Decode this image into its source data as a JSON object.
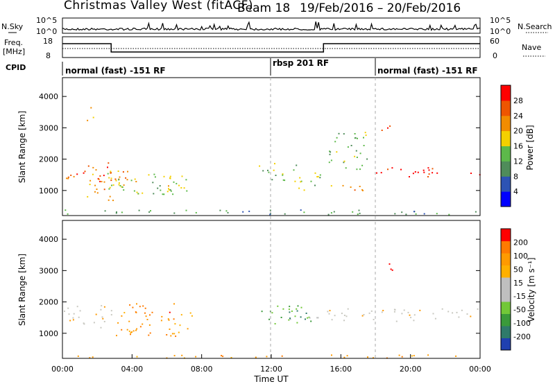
{
  "header": {
    "station": "Christmas Valley West (fitACF)",
    "beam": "Beam 18",
    "date_range": "19/Feb/2016 – 20/Feb/2016"
  },
  "colors": {
    "power_scale": [
      "#0000ff",
      "#2d53b4",
      "#4f8c5a",
      "#5db94a",
      "#f4d000",
      "#f28c00",
      "#ee5500",
      "#ff0000"
    ],
    "velocity_scale": [
      "#ff0000",
      "#ff7a00",
      "#ff9a00",
      "#ffb000",
      "#bfbfbf",
      "#bfbfbf",
      "#72c838",
      "#3a9a3a",
      "#2f7a6a",
      "#2040b0"
    ],
    "ground_scatter": "#c8c8c0"
  },
  "chart_data": [
    {
      "type": "line",
      "panel": "noise",
      "left_label": "N.Sky",
      "right_label": "N.Search",
      "left_ticks": [
        "10^5",
        "10^0"
      ],
      "right_ticks": [
        "10^5",
        "10^0"
      ]
    },
    {
      "type": "line",
      "panel": "frequency",
      "left_label_line1": "Freq.",
      "left_label_line2": "[MHz]",
      "right_label": "Nave",
      "left_ticks": [
        "18",
        "8"
      ],
      "right_ticks": [
        "60",
        "0"
      ],
      "freq_segments": [
        {
          "start": 0,
          "end": 2.8,
          "level": "high"
        },
        {
          "start": 2.8,
          "end": 15.0,
          "level": "low"
        },
        {
          "start": 15.0,
          "end": 24,
          "level": "high"
        }
      ]
    },
    {
      "type": "table",
      "panel": "cpid",
      "label": "CPID",
      "segments": [
        {
          "start": 0,
          "end": 12,
          "text": "normal (fast) -151 RF"
        },
        {
          "start": 12,
          "end": 18,
          "text": "rbsp 201 RF"
        },
        {
          "start": 18,
          "end": 24,
          "text": "normal (fast) -151 RF"
        }
      ]
    },
    {
      "type": "heatmap",
      "panel": "power",
      "ylabel": "Slant Range [km]",
      "xlim": [
        0,
        24
      ],
      "ylim": [
        200,
        4600
      ],
      "yticks": [
        1000,
        2000,
        3000,
        4000
      ],
      "colorbar_label": "Power [dB]",
      "colorbar_ticks": [
        4,
        8,
        12,
        16,
        20,
        24,
        28
      ],
      "regions": [
        {
          "t0": 0.0,
          "t1": 2.8,
          "r0": 1300,
          "r1": 1900,
          "level": 6
        },
        {
          "t0": 1.4,
          "t1": 3.8,
          "r0": 700,
          "r1": 1700,
          "level": 5
        },
        {
          "t0": 2.5,
          "t1": 5.0,
          "r0": 900,
          "r1": 1600,
          "level": 4
        },
        {
          "t0": 4.0,
          "t1": 7.2,
          "r0": 900,
          "r1": 1600,
          "level": 3
        },
        {
          "t0": 6.0,
          "t1": 7.5,
          "r0": 900,
          "r1": 1300,
          "level": 4
        },
        {
          "t0": 11.2,
          "t1": 13.5,
          "r0": 1300,
          "r1": 1900,
          "level": 3
        },
        {
          "t0": 13.5,
          "t1": 15.0,
          "r0": 1000,
          "r1": 1700,
          "level": 3
        },
        {
          "t0": 15.0,
          "t1": 18.0,
          "r0": 1000,
          "r1": 1200,
          "level": 5
        },
        {
          "t0": 15.2,
          "t1": 17.5,
          "r0": 1700,
          "r1": 2900,
          "level": 3
        },
        {
          "t0": 18.0,
          "t1": 24.0,
          "r0": 1450,
          "r1": 1750,
          "level": 7
        },
        {
          "t0": 18.2,
          "t1": 18.8,
          "r0": 2900,
          "r1": 3300,
          "level": 6
        },
        {
          "t0": 1.3,
          "t1": 1.8,
          "r0": 3100,
          "r1": 3700,
          "level": 4
        },
        {
          "t0": 0.0,
          "t1": 24.0,
          "r0": 250,
          "r1": 400,
          "level": 2
        }
      ]
    },
    {
      "type": "heatmap",
      "panel": "velocity",
      "xlabel": "Time UT",
      "ylabel": "Slant Range [km]",
      "xlim": [
        0,
        24
      ],
      "ylim": [
        200,
        4600
      ],
      "xticks": [
        "00:00",
        "04:00",
        "08:00",
        "12:00",
        "16:00",
        "20:00",
        "00:00"
      ],
      "yticks": [
        1000,
        2000,
        3000,
        4000
      ],
      "colorbar_label": "Velocity [m s⁻¹]",
      "colorbar_ticks": [
        200,
        100,
        50,
        15,
        -15,
        -50,
        -100,
        -200
      ],
      "regions": [
        {
          "t0": 0.0,
          "t1": 3.0,
          "r0": 1200,
          "r1": 1900,
          "level": "gs"
        },
        {
          "t0": 3.0,
          "t1": 7.5,
          "r0": 900,
          "r1": 1700,
          "level": -2
        },
        {
          "t0": 3.8,
          "t1": 6.5,
          "r0": 1600,
          "r1": 2000,
          "level": -3
        },
        {
          "t0": 11.2,
          "t1": 14.8,
          "r0": 1300,
          "r1": 1900,
          "level": 2
        },
        {
          "t0": 12.8,
          "t1": 14.2,
          "r0": 1400,
          "r1": 1800,
          "level": 4
        },
        {
          "t0": 15.0,
          "t1": 24.0,
          "r0": 1400,
          "r1": 1800,
          "level": "gs"
        },
        {
          "t0": 18.3,
          "t1": 19.0,
          "r0": 3000,
          "r1": 3400,
          "level": -4
        },
        {
          "t0": 0.0,
          "t1": 24.0,
          "r0": 230,
          "r1": 330,
          "level": -2
        }
      ]
    }
  ]
}
